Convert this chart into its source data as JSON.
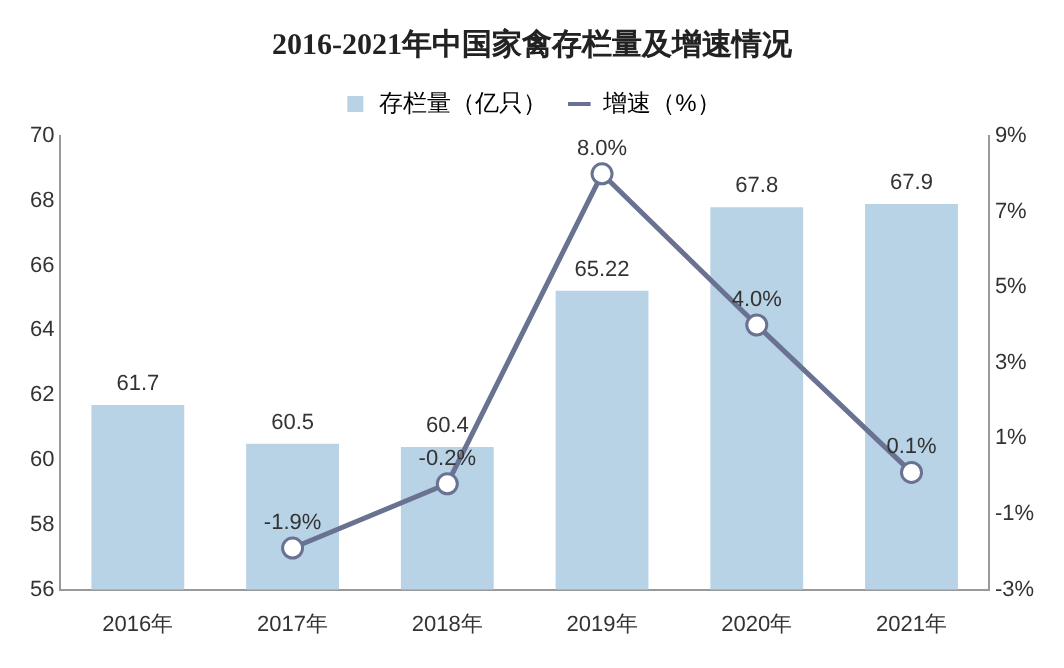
{
  "chart_data": {
    "type": "bar",
    "title": "2016-2021年中国家禽存栏量及增速情况",
    "categories": [
      "2016年",
      "2017年",
      "2018年",
      "2019年",
      "2020年",
      "2021年"
    ],
    "series": [
      {
        "name": "存栏量（亿只）",
        "color": "#b9d3e6",
        "values": [
          61.7,
          60.5,
          60.4,
          65.22,
          67.8,
          67.9
        ],
        "value_labels": [
          "61.7",
          "60.5",
          "60.4",
          "65.22",
          "67.8",
          "67.9"
        ]
      },
      {
        "name": "增速（%）",
        "type": "line",
        "axis": "y2",
        "color": "#6a7292",
        "marker": "circle",
        "values": [
          null,
          -1.9,
          -0.2,
          8.0,
          4.0,
          0.1
        ],
        "value_labels": [
          null,
          "-1.9%",
          "-0.2%",
          "8.0%",
          "4.0%",
          "0.1%"
        ]
      }
    ],
    "ylim": [
      56,
      70
    ],
    "yticks": [
      56,
      58,
      60,
      62,
      64,
      66,
      68,
      70
    ],
    "y2lim": [
      -3,
      9
    ],
    "y2ticks": [
      {
        "value": -3,
        "label": "-3%"
      },
      {
        "value": -1,
        "label": "-1%"
      },
      {
        "value": 1,
        "label": "1%"
      },
      {
        "value": 3,
        "label": "3%"
      },
      {
        "value": 5,
        "label": "5%"
      },
      {
        "value": 7,
        "label": "7%"
      },
      {
        "value": 9,
        "label": "9%"
      }
    ],
    "legend": "top"
  }
}
